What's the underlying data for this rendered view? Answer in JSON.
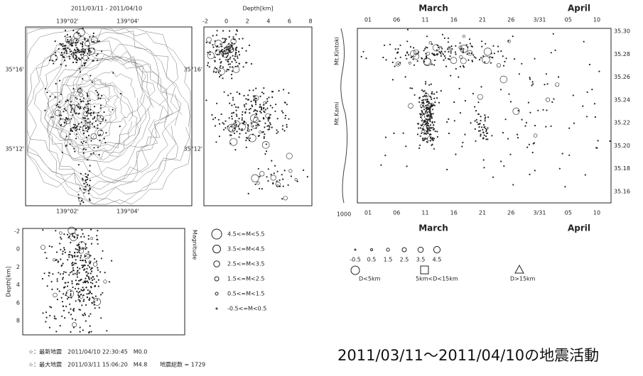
{
  "map": {
    "title": "2011/03/11 - 2011/04/10",
    "top_ticks": [
      "139°02'",
      "139°04'"
    ],
    "bottom_ticks": [
      "139°02'",
      "139°04'"
    ],
    "left_ticks": [
      "35°16'",
      "35°12'"
    ]
  },
  "depth_panel": {
    "xlabel": "Depth[km]",
    "xticks": [
      "-2",
      "0",
      "2",
      "4",
      "6",
      "8"
    ],
    "left_ticks": [
      "35°16'",
      "35°12'"
    ]
  },
  "time_panel": {
    "months_top": [
      "March",
      "April"
    ],
    "months_bottom": [
      "March",
      "April"
    ],
    "top_ticks": [
      "01",
      "06",
      "11",
      "16",
      "21",
      "26",
      "3/31",
      "05",
      "10"
    ],
    "bottom_ticks": [
      "01",
      "06",
      "11",
      "16",
      "21",
      "26",
      "3/31",
      "05",
      "10"
    ],
    "corner_label": "1000",
    "yticks": [
      "35.30",
      "35.28",
      "35.26",
      "35.24",
      "35.22",
      "35.20",
      "35.18",
      "35.16"
    ],
    "peaks": [
      "Mt.Kintoki",
      "Mt.Kami"
    ]
  },
  "section_panel": {
    "ylabel": "Depth[km]",
    "yticks": [
      "-2",
      "0",
      "2",
      "4",
      "6",
      "8"
    ],
    "right_label": "Magnitude"
  },
  "mag_legend": [
    "4.5<=M<5.5",
    "3.5<=M<4.5",
    "2.5<=M<3.5",
    "1.5<=M<2.5",
    "0.5<=M<1.5",
    "-0.5<=M<0.5"
  ],
  "time_legend": {
    "mags": [
      "-0.5",
      "0.5",
      "1.5",
      "2.5",
      "3.5",
      "4.5"
    ],
    "depths": [
      "D<5km",
      "5km<D<15km",
      "D>15km"
    ]
  },
  "footer": {
    "latest": "☆：最新地震　2011/04/10 22:30:45　M0.0",
    "largest": "☆：最大地震　2011/03/11 15:06:20　M4.8",
    "total": "地震総数 = 1729"
  },
  "caption": "2011/03/11～2011/04/10の地震活動"
}
